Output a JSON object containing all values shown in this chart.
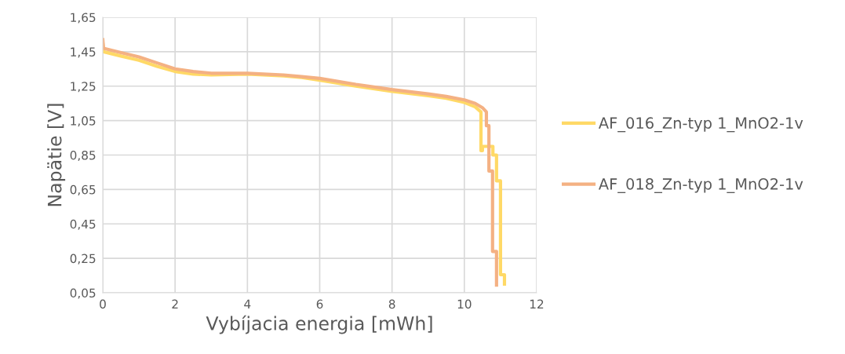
{
  "chart_data": {
    "type": "line",
    "xlabel": "Vybíjacia energia [mWh]",
    "ylabel": "Napätie [V]",
    "xlim": [
      0,
      12
    ],
    "xticks": [
      0,
      2,
      4,
      6,
      8,
      10,
      12
    ],
    "ylim": [
      0.05,
      1.65
    ],
    "yticks": [
      {
        "value": 0.05,
        "label": "0,05"
      },
      {
        "value": 0.25,
        "label": "0,25"
      },
      {
        "value": 0.45,
        "label": "0,45"
      },
      {
        "value": 0.65,
        "label": "0,65"
      },
      {
        "value": 0.85,
        "label": "0,85"
      },
      {
        "value": 1.05,
        "label": "1,05"
      },
      {
        "value": 1.25,
        "label": "1,25"
      },
      {
        "value": 1.45,
        "label": "1,45"
      },
      {
        "value": 1.65,
        "label": "1,65"
      }
    ],
    "grid": true,
    "legend": "right",
    "line_style": "solid",
    "marker": "none",
    "series": [
      {
        "name": "AF_016_Zn-typ 1_MnO2-1v",
        "color": "#ffd966",
        "x": [
          0,
          0.02,
          0.5,
          1,
          1.5,
          2,
          2.5,
          3,
          4,
          5,
          5.5,
          6,
          7,
          8,
          9,
          9.5,
          10,
          10.3,
          10.46,
          10.46,
          10.5,
          10.5,
          10.79,
          10.79,
          10.89,
          10.89,
          11.0,
          11.0,
          11.11,
          11.11
        ],
        "values": [
          1.5,
          1.45,
          1.425,
          1.4,
          1.365,
          1.335,
          1.32,
          1.315,
          1.32,
          1.31,
          1.3,
          1.285,
          1.25,
          1.22,
          1.195,
          1.18,
          1.155,
          1.13,
          1.1,
          0.875,
          0.875,
          0.9,
          0.9,
          0.85,
          0.85,
          0.7,
          0.7,
          0.155,
          0.155,
          0.1
        ]
      },
      {
        "name": "AF_018_Zn-typ 1_MnO2-1v",
        "color": "#f4b183",
        "x": [
          0,
          0.02,
          0.5,
          1,
          1.5,
          2,
          2.5,
          3,
          4,
          5,
          5.5,
          6,
          7,
          8,
          9,
          9.5,
          10,
          10.3,
          10.5,
          10.61,
          10.61,
          10.68,
          10.68,
          10.78,
          10.78,
          10.89,
          10.89
        ],
        "values": [
          1.52,
          1.47,
          1.445,
          1.42,
          1.385,
          1.35,
          1.335,
          1.325,
          1.325,
          1.315,
          1.305,
          1.295,
          1.26,
          1.23,
          1.205,
          1.19,
          1.17,
          1.15,
          1.125,
          1.1,
          1.02,
          1.02,
          0.757,
          0.757,
          0.29,
          0.29,
          0.095
        ]
      }
    ]
  }
}
